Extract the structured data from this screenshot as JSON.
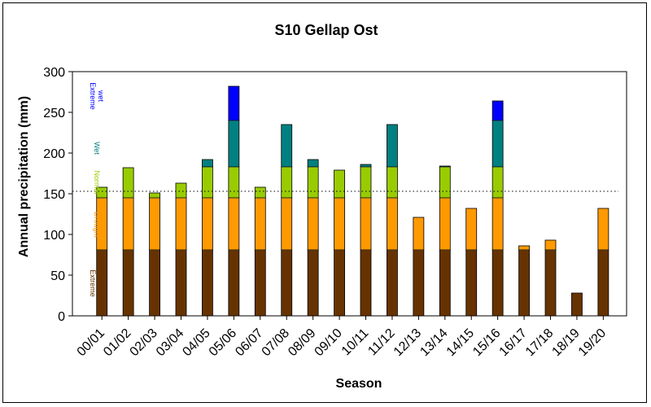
{
  "chart_data": {
    "type": "bar",
    "stacked": true,
    "title": "S10 Gellap Ost",
    "xlabel": "Season",
    "ylabel": "Annual precipitation (mm)",
    "ylim": [
      0,
      300
    ],
    "yticks": [
      0,
      50,
      100,
      150,
      200,
      250,
      300
    ],
    "grid": false,
    "legend": "none",
    "reference_line": 153,
    "categories": [
      "00/01",
      "01/02",
      "02/03",
      "03/04",
      "04/05",
      "05/06",
      "06/07",
      "07/08",
      "08/09",
      "09/10",
      "10/11",
      "11/12",
      "12/13",
      "13/14",
      "14/15",
      "15/16",
      "16/17",
      "17/18",
      "18/19",
      "19/20"
    ],
    "totals": [
      158,
      182,
      151,
      163,
      192,
      282,
      158,
      235,
      192,
      179,
      186,
      235,
      121,
      184,
      132,
      264,
      86,
      93,
      28,
      132
    ],
    "class_bounds": [
      {
        "label": "Extreme drought",
        "upper": 81,
        "color": "#663300"
      },
      {
        "label": "Drought",
        "upper": 145,
        "color": "#FF9900"
      },
      {
        "label": "Normal",
        "upper": 183,
        "color": "#99CC00"
      },
      {
        "label": "Wet",
        "upper": 240,
        "color": "#008080"
      },
      {
        "label": "Extreme wet",
        "upper": 300,
        "color": "#0000FF"
      }
    ],
    "band_labels": [
      {
        "lines": [
          "Extreme",
          "drought"
        ],
        "color": "#663300",
        "value": 40
      },
      {
        "lines": [
          "Drought"
        ],
        "color": "#FF9900",
        "value": 112
      },
      {
        "lines": [
          "Normal"
        ],
        "color": "#99CC00",
        "value": 164
      },
      {
        "lines": [
          "Wet"
        ],
        "color": "#008080",
        "value": 206
      },
      {
        "lines": [
          "Extreme",
          "wet"
        ],
        "color": "#0000FF",
        "value": 270
      }
    ]
  }
}
